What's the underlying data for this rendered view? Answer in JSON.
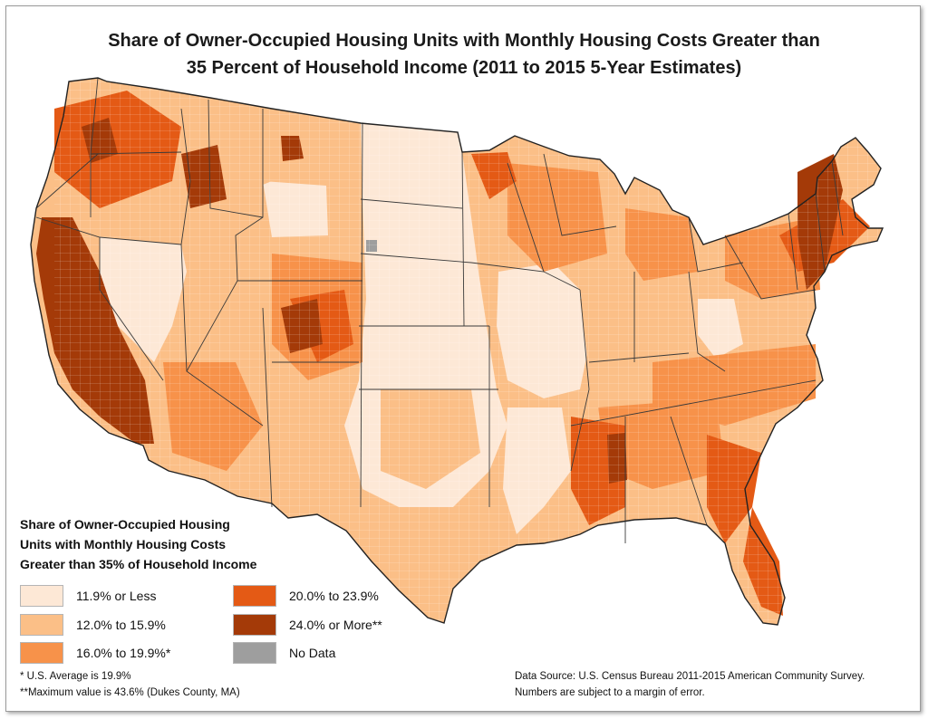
{
  "title": {
    "line1": "Share of Owner-Occupied Housing Units with Monthly Housing Costs Greater than",
    "line2": "35 Percent of Household Income (2011 to 2015 5-Year Estimates)"
  },
  "legend": {
    "title_line1": "Share of Owner-Occupied Housing",
    "title_line2": "Units with Monthly Housing Costs",
    "title_line3": "Greater than 35% of Household Income",
    "classes": [
      {
        "label": "11.9% or Less",
        "color": "#fde8d6"
      },
      {
        "label": "12.0% to 15.9%",
        "color": "#fbbf87"
      },
      {
        "label": "16.0% to 19.9%*",
        "color": "#f7924a"
      },
      {
        "label": "20.0% to 23.9%",
        "color": "#e45a15"
      },
      {
        "label": "24.0% or More**",
        "color": "#a43a08"
      },
      {
        "label": "No Data",
        "color": "#9e9e9e"
      }
    ]
  },
  "footnotes": {
    "average": "* U.S. Average is 19.9%",
    "maximum": "**Maximum value is 43.6% (Dukes County, MA)"
  },
  "source": {
    "line1": "Data Source: U.S. Census Bureau 2011-2015 American Community Survey.",
    "line2": "Numbers are subject to a margin of error."
  }
}
